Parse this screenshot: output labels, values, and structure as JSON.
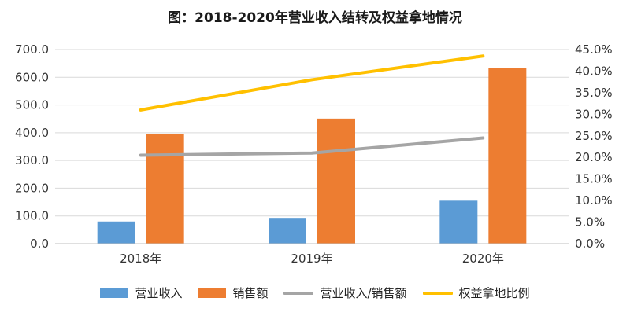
{
  "chart_data": {
    "type": "bar",
    "title": "图：2018-2020年营业收入结转及权益拿地情况",
    "categories": [
      "2018年",
      "2019年",
      "2020年"
    ],
    "series": [
      {
        "name": "营业收入",
        "kind": "bar",
        "axis": "left",
        "color": "#5B9BD5",
        "values": [
          80,
          93,
          155
        ]
      },
      {
        "name": "销售额",
        "kind": "bar",
        "axis": "left",
        "color": "#ED7D31",
        "values": [
          396,
          451,
          632
        ]
      },
      {
        "name": "营业收入/销售额",
        "kind": "line",
        "axis": "right",
        "color": "#A5A5A5",
        "values": [
          20.5,
          21.0,
          24.5
        ]
      },
      {
        "name": "权益拿地比例",
        "kind": "line",
        "axis": "right",
        "color": "#FFC000",
        "values": [
          31.0,
          38.0,
          43.5
        ]
      }
    ],
    "y_left": {
      "min": 0,
      "max": 700,
      "step": 100,
      "tick_labels": [
        "0.0",
        "100.0",
        "200.0",
        "300.0",
        "400.0",
        "500.0",
        "600.0",
        "700.0"
      ]
    },
    "y_right": {
      "min": 0,
      "max": 45,
      "step": 5,
      "unit": "%",
      "tick_labels": [
        "0.0%",
        "5.0%",
        "10.0%",
        "15.0%",
        "20.0%",
        "25.0%",
        "30.0%",
        "35.0%",
        "40.0%",
        "45.0%"
      ]
    },
    "grid": true,
    "legend_position": "bottom"
  }
}
